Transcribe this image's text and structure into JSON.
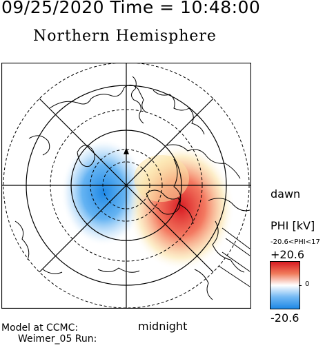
{
  "header": {
    "timestamp": "09/25/2020 Time = 10:48:00",
    "hemisphere": "Northern Hemisphere"
  },
  "map": {
    "orientation_labels": {
      "right": "dawn",
      "bottom": "midnight"
    },
    "projection": "polar",
    "grid": {
      "dashed_circles": 3,
      "solid_circles": 3,
      "meridian_lines": 4
    },
    "potential_pattern": {
      "positive_cell": {
        "color": "#d81b23",
        "side": "dawn"
      },
      "negative_cell": {
        "color": "#1e88e5",
        "side": "dusk"
      }
    }
  },
  "colorbar": {
    "variable": "PHI [kV]",
    "range_text": "-20.6<PHI<17",
    "max_label": "+20.6",
    "zero_label": "0",
    "min_label": "-20.6",
    "colors": {
      "max": "#d81b23",
      "zero": "#ffffff",
      "min": "#1e88e5"
    }
  },
  "footer": {
    "model_label": "Model at CCMC:",
    "run_label": "Weimer_05 Run:"
  }
}
